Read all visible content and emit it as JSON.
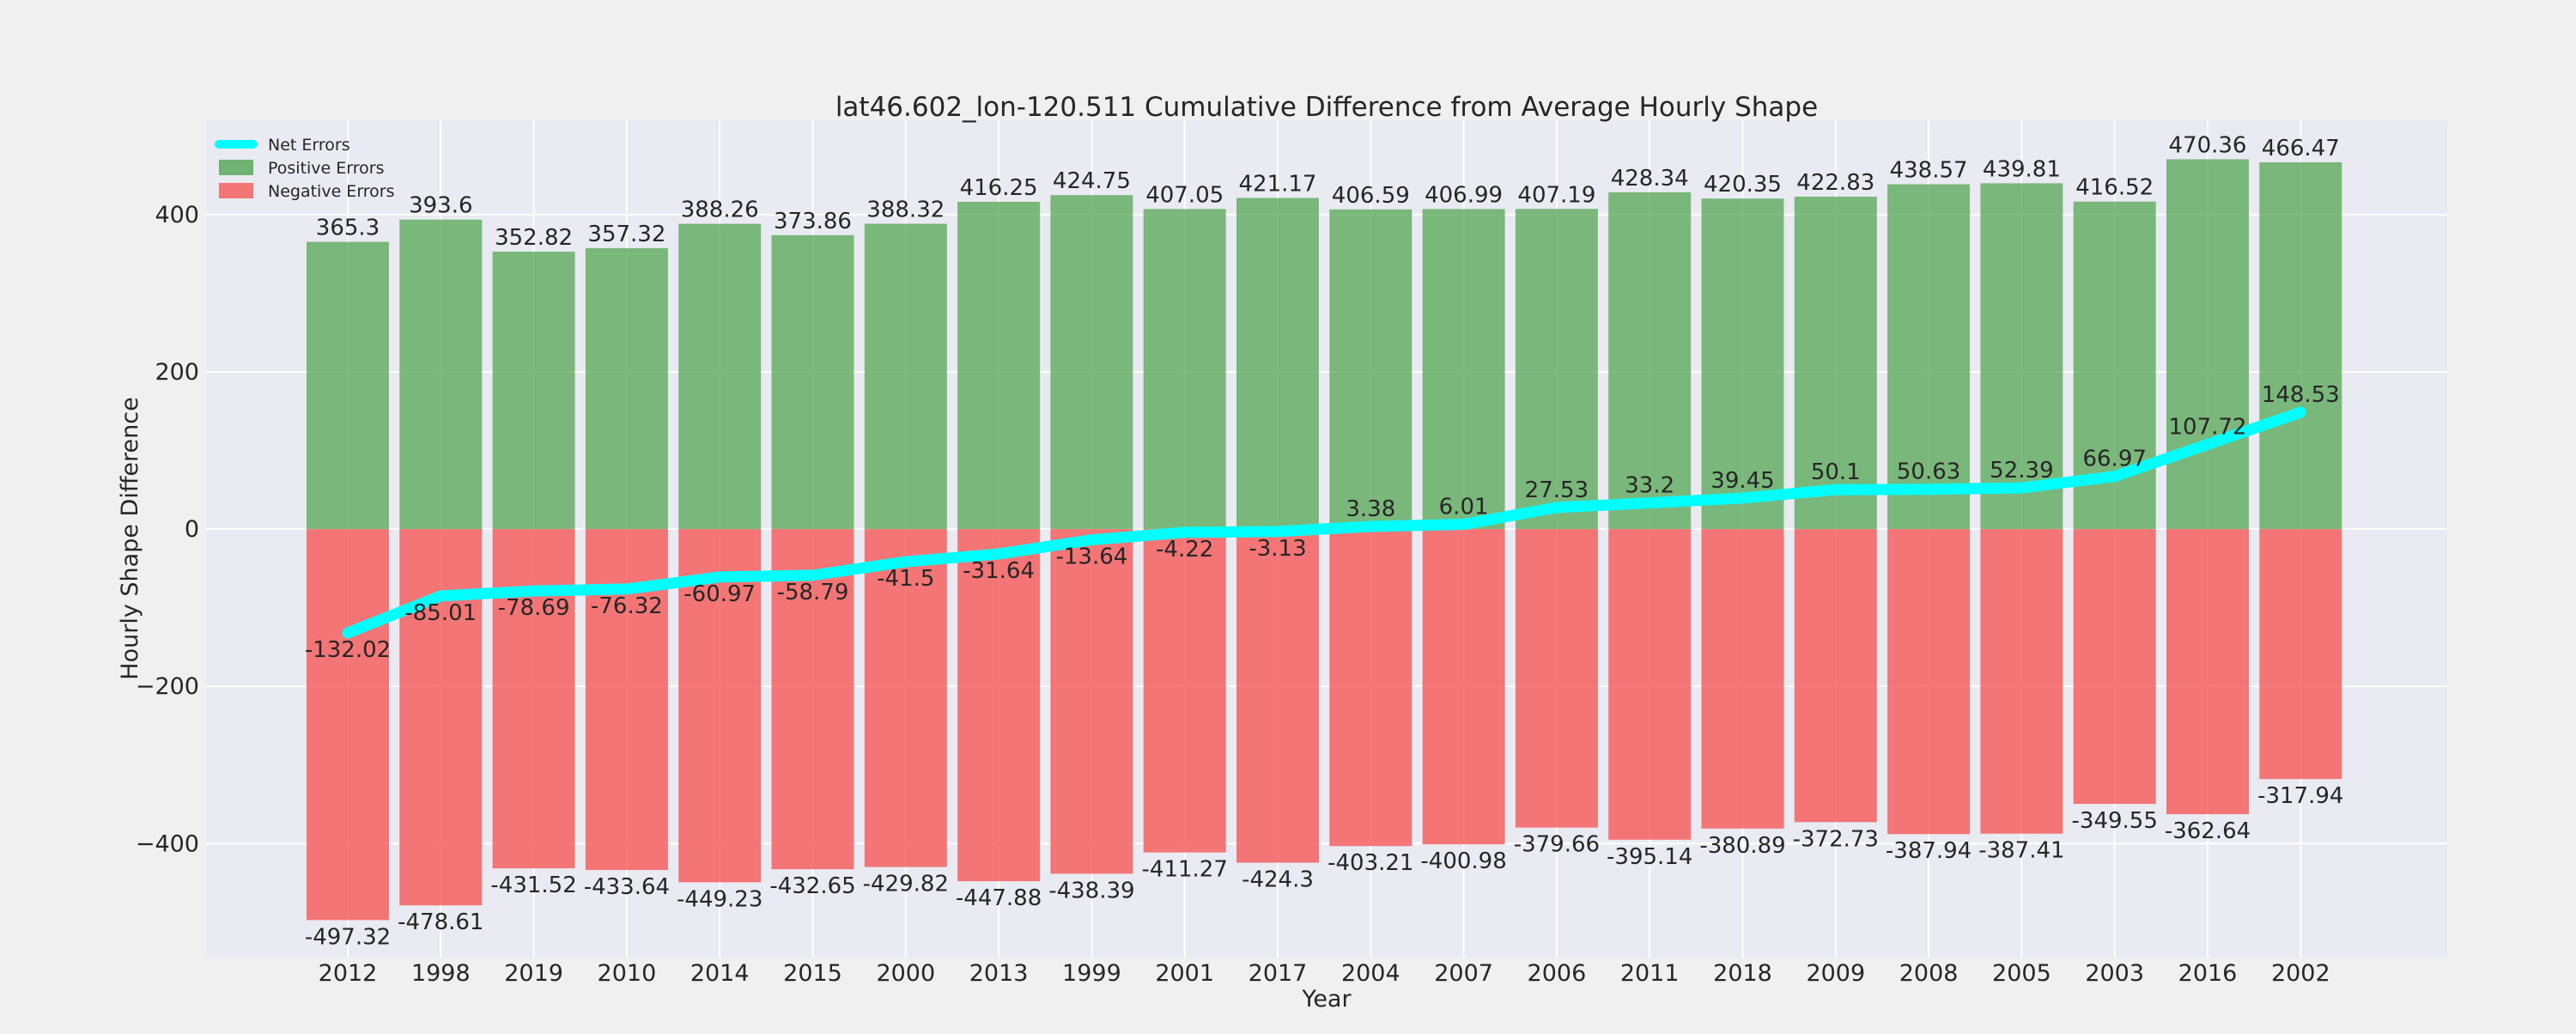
{
  "chart_data": {
    "type": "bar",
    "title": "lat46.602_lon-120.511 Cumulative Difference from Average Hourly Shape",
    "xlabel": "Year",
    "ylabel": "Hourly Shape Difference",
    "categories": [
      "2012",
      "1998",
      "2019",
      "2010",
      "2014",
      "2015",
      "2000",
      "2013",
      "1999",
      "2001",
      "2017",
      "2004",
      "2007",
      "2006",
      "2011",
      "2018",
      "2009",
      "2008",
      "2005",
      "2003",
      "2016",
      "2002"
    ],
    "series": [
      {
        "name": "Positive Errors",
        "kind": "bar",
        "color": "#5aa85a",
        "values": [
          365.3,
          393.6,
          352.82,
          357.32,
          388.26,
          373.86,
          388.32,
          416.25,
          424.75,
          407.05,
          421.17,
          406.59,
          406.99,
          407.19,
          428.34,
          420.35,
          422.83,
          438.57,
          439.81,
          416.52,
          470.36,
          466.47
        ],
        "labels": [
          "365.3",
          "393.6",
          "352.82",
          "357.32",
          "388.26",
          "373.86",
          "388.32",
          "416.25",
          "424.75",
          "407.05",
          "421.17",
          "406.59",
          "406.99",
          "407.19",
          "428.34",
          "420.35",
          "422.83",
          "438.57",
          "439.81",
          "416.52",
          "470.36",
          "466.47"
        ]
      },
      {
        "name": "Negative Errors",
        "kind": "bar",
        "color": "#f46060",
        "values": [
          -497.32,
          -478.61,
          -431.52,
          -433.64,
          -449.23,
          -432.65,
          -429.82,
          -447.88,
          -438.39,
          -411.27,
          -424.3,
          -403.21,
          -400.98,
          -379.66,
          -395.14,
          -380.89,
          -372.73,
          -387.94,
          -387.41,
          -349.55,
          -362.64,
          -317.94
        ],
        "labels": [
          "-497.32",
          "-478.61",
          "-431.52",
          "-433.64",
          "-449.23",
          "-432.65",
          "-429.82",
          "-447.88",
          "-438.39",
          "-411.27",
          "-424.3",
          "-403.21",
          "-400.98",
          "-379.66",
          "-395.14",
          "-380.89",
          "-372.73",
          "-387.94",
          "-387.41",
          "-349.55",
          "-362.64",
          "-317.94"
        ]
      },
      {
        "name": "Net Errors",
        "kind": "line",
        "color": "#00ffff",
        "values": [
          -132.02,
          -85.01,
          -78.69,
          -76.32,
          -60.97,
          -58.79,
          -41.5,
          -31.64,
          -13.64,
          -4.22,
          -3.13,
          3.38,
          6.01,
          27.53,
          33.2,
          39.45,
          50.1,
          50.63,
          52.39,
          66.97,
          107.72,
          148.53
        ],
        "labels": [
          "-132.02",
          "-85.01",
          "-78.69",
          "-76.32",
          "-60.97",
          "-58.79",
          "-41.5",
          "-31.64",
          "-13.64",
          "-4.22",
          "-3.13",
          "3.38",
          "6.01",
          "27.53",
          "33.2",
          "39.45",
          "50.1",
          "50.63",
          "52.39",
          "66.97",
          "107.72",
          "148.53"
        ]
      }
    ],
    "ylim": [
      -545,
      520
    ],
    "yticks": [
      -400,
      -200,
      0,
      200,
      400
    ],
    "ytick_labels": [
      "−400",
      "−200",
      "0",
      "200",
      "400"
    ],
    "grid": true,
    "legend_position": "top-left",
    "legend_order": [
      "Net Errors",
      "Positive Errors",
      "Negative Errors"
    ],
    "colors": {
      "background": "#eaeaf2",
      "figure": "#f0f0f0",
      "grid": "#ffffff"
    }
  }
}
